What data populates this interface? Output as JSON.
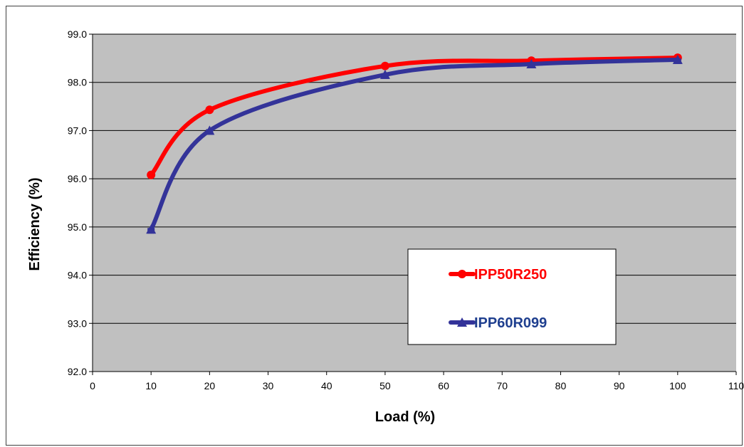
{
  "chart_data": {
    "type": "line",
    "title": "",
    "xlabel": "Load (%)",
    "ylabel": "Efficiency (%)",
    "xlim": [
      0,
      110
    ],
    "ylim": [
      92.0,
      99.0
    ],
    "x_ticks": [
      "0",
      "10",
      "20",
      "30",
      "40",
      "50",
      "60",
      "70",
      "80",
      "90",
      "100",
      "110"
    ],
    "y_ticks": [
      "92.0",
      "93.0",
      "94.0",
      "95.0",
      "96.0",
      "97.0",
      "98.0",
      "99.0"
    ],
    "grid": "horizontal",
    "legend_position": "lower-right",
    "plot_background": "#c0c0c0",
    "series": [
      {
        "name": "IPP50R250",
        "color": "#ff0000",
        "marker": "circle",
        "x": [
          10,
          20,
          50,
          75,
          100
        ],
        "y": [
          96.08,
          97.43,
          98.34,
          98.45,
          98.51
        ]
      },
      {
        "name": "IPP60R099",
        "color": "#333399",
        "marker": "triangle",
        "x": [
          10,
          20,
          50,
          75,
          100
        ],
        "y": [
          94.95,
          97.0,
          98.16,
          98.38,
          98.47
        ]
      }
    ]
  }
}
